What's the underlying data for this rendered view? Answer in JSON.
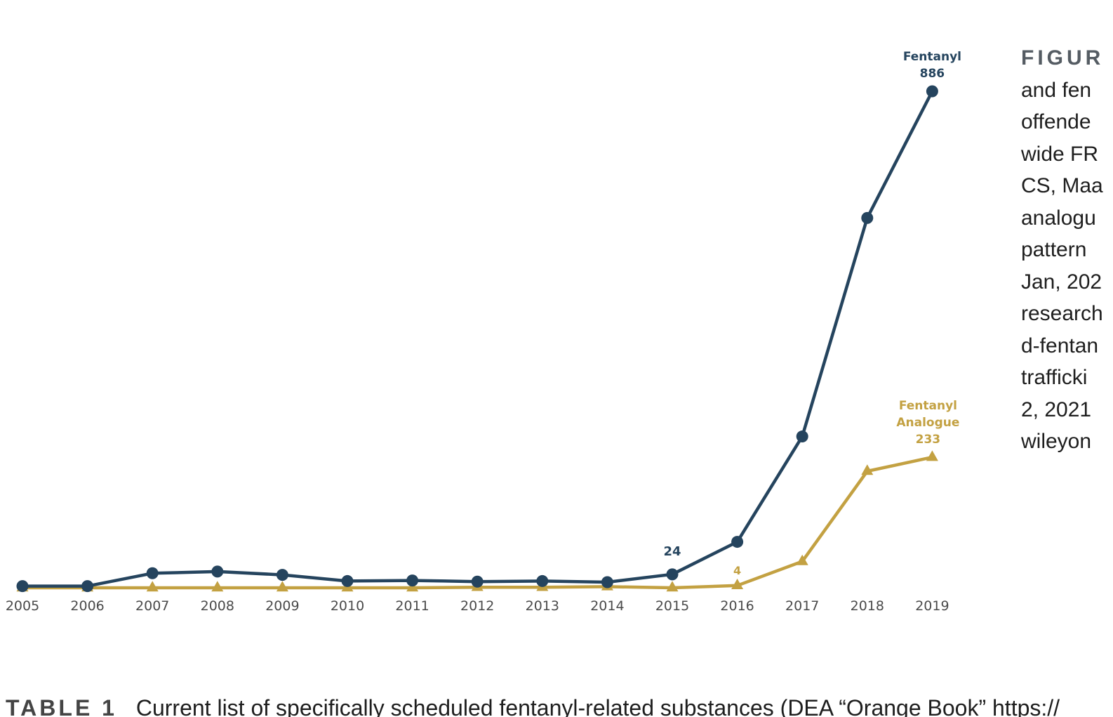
{
  "chart_data": {
    "type": "line",
    "x": [
      "2005",
      "2006",
      "2007",
      "2008",
      "2009",
      "2010",
      "2011",
      "2012",
      "2013",
      "2014",
      "2015",
      "2016",
      "2017",
      "2018",
      "2019"
    ],
    "series": [
      {
        "name": "Fentanyl",
        "color": "#25445e",
        "marker": "circle",
        "values": [
          3,
          3,
          26,
          29,
          23,
          12,
          13,
          11,
          12,
          10,
          24,
          82,
          270,
          660,
          886
        ],
        "data_labels": [
          {
            "index": 10,
            "text": "24"
          }
        ]
      },
      {
        "name": "Fentanyl Analogue",
        "color": "#c3a142",
        "marker": "triangle",
        "values": [
          0,
          0,
          0,
          0,
          0,
          0,
          0,
          1,
          1,
          2,
          0,
          4,
          47,
          208,
          233
        ],
        "data_labels": [
          {
            "index": 11,
            "text": "4"
          }
        ]
      }
    ],
    "end_labels": [
      {
        "series": 0,
        "lines": [
          "Fentanyl",
          "886"
        ]
      },
      {
        "series": 1,
        "lines": [
          "Fentanyl",
          "Analogue",
          "233"
        ]
      }
    ],
    "ylim": [
      0,
      886
    ],
    "xlabel": "",
    "ylabel": "",
    "grid": false,
    "legend": "none"
  },
  "caption": {
    "heading": "FIGUR",
    "lines": [
      "and fen",
      "offende",
      "wide FR",
      "CS, Maa",
      "analogu",
      "pattern",
      "Jan, 202",
      "research",
      "d-fentan",
      "trafficki",
      "2, 2021",
      "wileyon"
    ]
  },
  "table_heading": {
    "label": "TABLE 1",
    "text": "Current list of specifically scheduled fentanyl-related substances (DEA “Orange Book” https://"
  }
}
